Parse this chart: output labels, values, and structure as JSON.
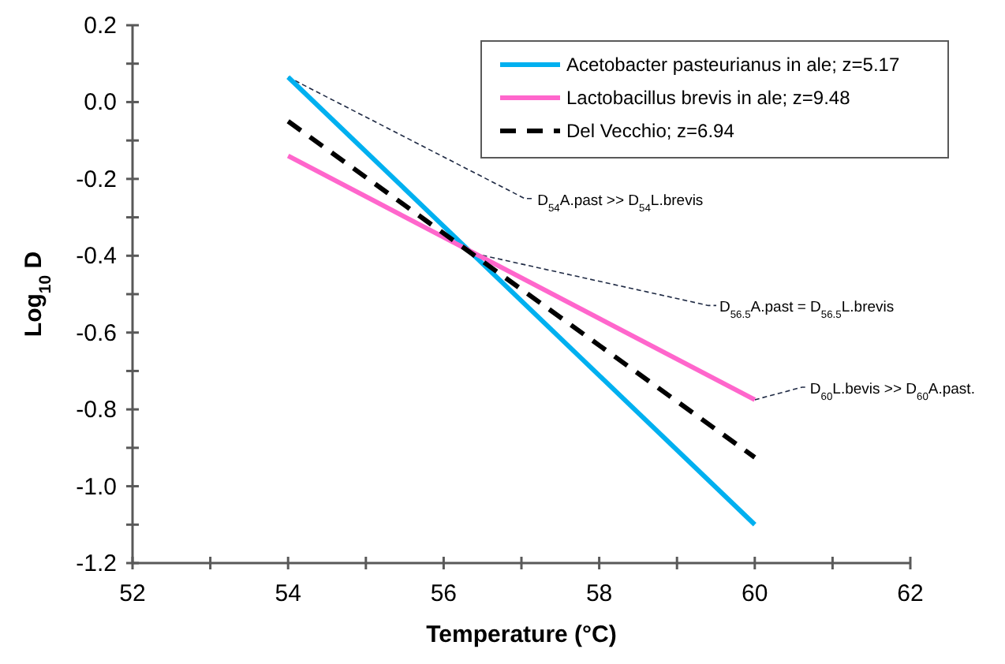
{
  "chart_data": {
    "type": "line",
    "xlabel": "Temperature (°C)",
    "ylabel": "Log$_{10}$ D",
    "x": [
      54,
      60
    ],
    "series": [
      {
        "name": "Acetobacter pasteurianus in ale; z=5.17",
        "color": "#00b0f0",
        "values": [
          0.065,
          -1.1
        ]
      },
      {
        "name": "Lactobacillus brevis in ale; z=9.48",
        "color": "#ff66cc",
        "values": [
          -0.14,
          -0.775
        ]
      },
      {
        "name": "Del Vecchio; z=6.94",
        "color": "#000000",
        "values": [
          -0.05,
          -0.925
        ],
        "line_style": "dashed"
      }
    ],
    "xlim": [
      52,
      62
    ],
    "xticks": [
      52,
      {
        "value": 53,
        "label": null
      },
      54,
      {
        "value": 55,
        "label": null
      },
      56,
      {
        "value": 57,
        "label": null
      },
      58,
      {
        "value": 59,
        "label": null
      },
      60,
      {
        "value": 61,
        "label": null
      },
      62
    ],
    "ylim": [
      -1.2,
      0.2
    ],
    "yticks": [
      {
        "value": -1.2,
        "label": "-1.2"
      },
      {
        "value": -1.1,
        "label": null
      },
      {
        "value": -1,
        "label": "-1.0"
      },
      {
        "value": -0.9,
        "label": null
      },
      -0.8,
      {
        "value": -0.7,
        "label": null
      },
      -0.6,
      {
        "value": -0.5,
        "label": null
      },
      -0.4,
      {
        "value": -0.3,
        "label": null
      },
      -0.2,
      {
        "value": -0.1,
        "label": null
      },
      {
        "value": 0,
        "label": "0.0"
      },
      {
        "value": 0.1,
        "label": null
      },
      0.2
    ],
    "grid": false,
    "legend": "top right",
    "marker": "none",
    "line_style": "solid",
    "annotations": [
      {
        "text": "D$_{54}$A.past >> D$_{54}$L.brevis",
        "x": 54,
        "y": 0.065
      },
      {
        "text": "D$_{56.5}$A.past = D$_{56.5}$L.brevis",
        "x": 56.3,
        "y": -0.39
      },
      {
        "text": "D$_{60}$L.bevis >> D$_{60}$A.past.",
        "x": 60,
        "y": -0.775
      }
    ]
  }
}
